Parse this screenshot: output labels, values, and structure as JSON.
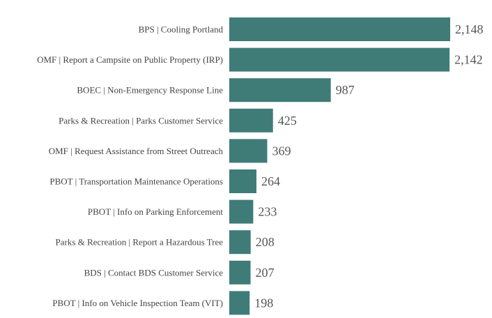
{
  "chart_data": {
    "type": "bar",
    "orientation": "horizontal",
    "categories": [
      "BPS | Cooling Portland",
      "OMF | Report a Campsite on Public Property (IRP)",
      "BOEC | Non-Emergency Response Line",
      "Parks & Recreation | Parks Customer Service",
      "OMF | Request Assistance from Street Outreach",
      "PBOT | Transportation Maintenance Operations",
      "PBOT | Info on Parking Enforcement",
      "Parks & Recreation | Report a Hazardous Tree",
      "BDS | Contact BDS Customer Service",
      "PBOT | Info on Vehicle Inspection Team (VIT)"
    ],
    "values": [
      2148,
      2142,
      987,
      425,
      369,
      264,
      233,
      208,
      207,
      198
    ],
    "value_labels": [
      "2,148",
      "2,142",
      "987",
      "425",
      "369",
      "264",
      "233",
      "208",
      "207",
      "198"
    ],
    "title": "",
    "xlabel": "",
    "ylabel": "",
    "xlim": [
      0,
      2148
    ],
    "grid": false,
    "bar_color": "#3f7c78"
  }
}
